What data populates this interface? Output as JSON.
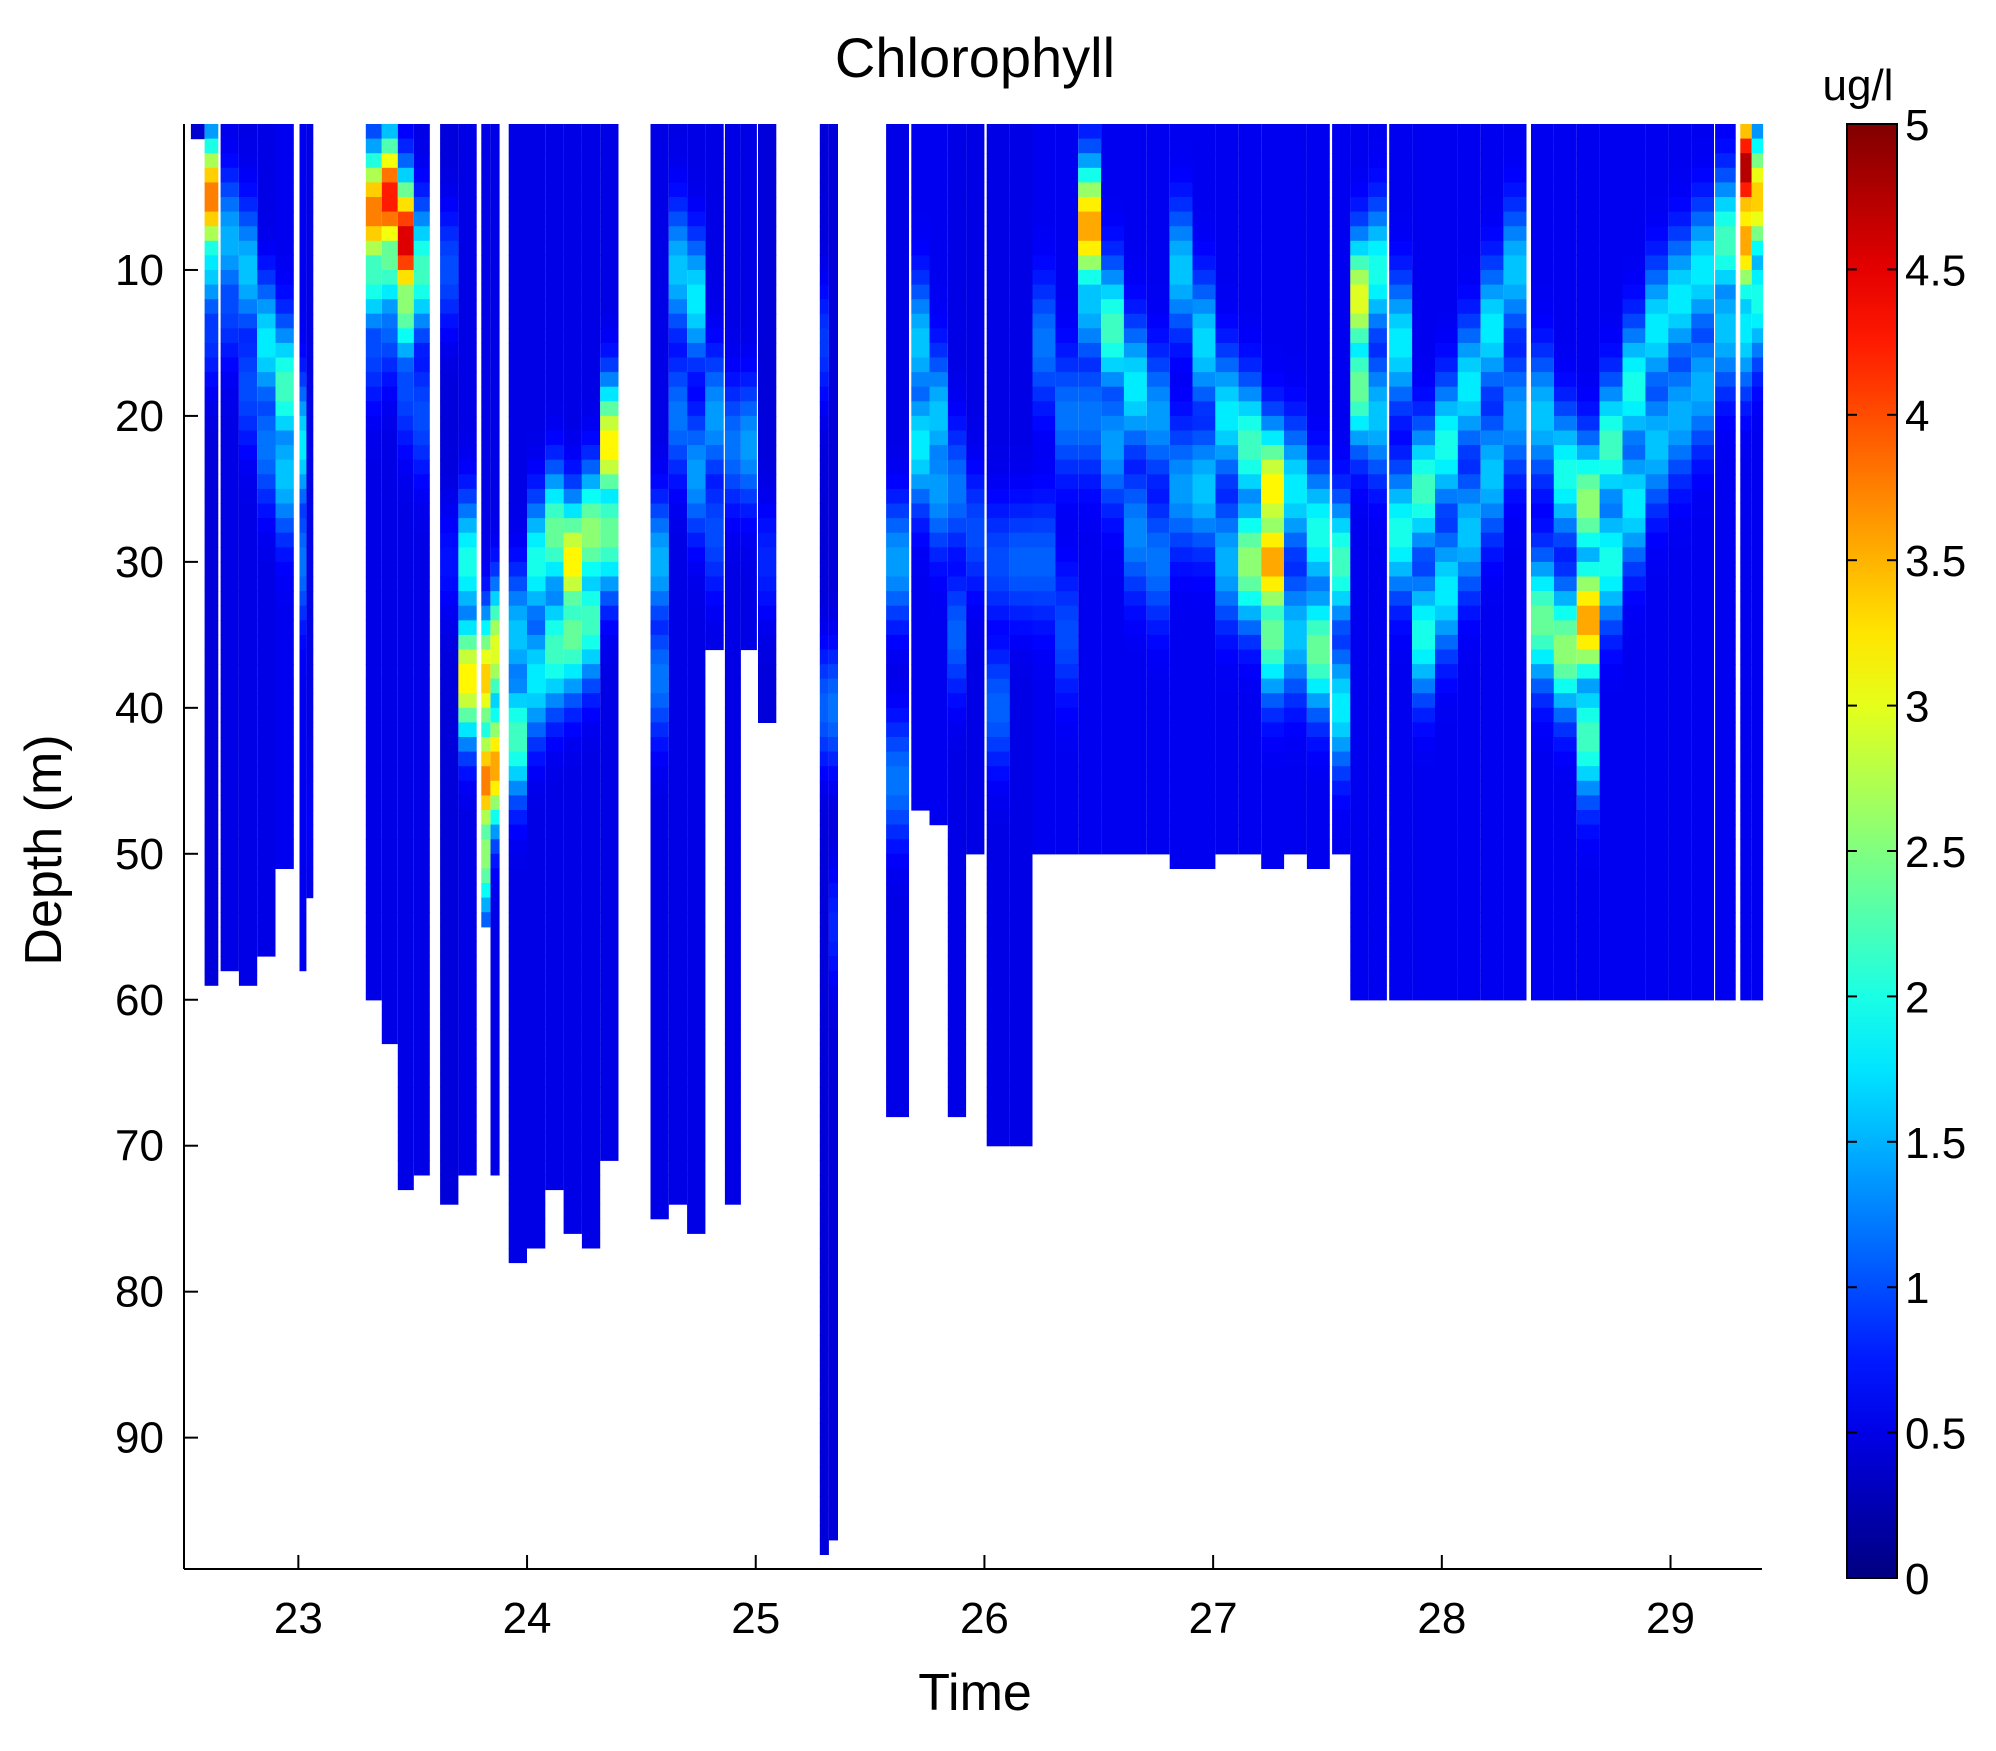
{
  "chart_data": {
    "type": "heatmap",
    "title": "Chlorophyll",
    "xlabel": "Time",
    "ylabel": "Depth (m)",
    "xlim": [
      22.5,
      29.4
    ],
    "ylim": [
      0,
      99
    ],
    "y_reversed": true,
    "xticks": [
      23,
      24,
      25,
      26,
      27,
      28,
      29
    ],
    "yticks": [
      10,
      20,
      30,
      40,
      50,
      60,
      70,
      80,
      90
    ],
    "colorbar": {
      "label": "ug/l",
      "range": [
        0,
        5
      ],
      "ticks": [
        "0",
        "0.5",
        "1",
        "1.5",
        "2",
        "2.5",
        "3",
        "3.5",
        "4",
        "4.5",
        "5"
      ],
      "colormap": "jet"
    },
    "profiles": [
      {
        "t": 22.56,
        "max_depth": 1,
        "base": 0.4,
        "chl": [
          [
            0,
            0.4
          ]
        ]
      },
      {
        "t": 22.62,
        "max_depth": 59,
        "base": 0.45,
        "chl": [
          [
            5,
            3.8
          ],
          [
            9,
            1.8
          ],
          [
            14,
            0.9
          ]
        ]
      },
      {
        "t": 22.7,
        "max_depth": 58,
        "base": 0.5,
        "chl": [
          [
            8,
            1.5
          ],
          [
            12,
            1.0
          ]
        ]
      },
      {
        "t": 22.78,
        "max_depth": 59,
        "base": 0.5,
        "chl": [
          [
            10,
            1.6
          ],
          [
            18,
            1.0
          ]
        ]
      },
      {
        "t": 22.86,
        "max_depth": 57,
        "base": 0.5,
        "chl": [
          [
            15,
            1.8
          ],
          [
            22,
            1.2
          ]
        ]
      },
      {
        "t": 22.94,
        "max_depth": 51,
        "base": 0.55,
        "chl": [
          [
            18,
            2.2
          ],
          [
            24,
            1.6
          ]
        ]
      },
      {
        "t": 23.02,
        "max_depth": 58,
        "base": 0.55,
        "chl": [
          [
            22,
            1.8
          ],
          [
            30,
            1.2
          ]
        ]
      },
      {
        "t": 23.05,
        "max_depth": 53,
        "base": 0.5,
        "chl": [
          [
            48,
            0.6
          ]
        ]
      },
      {
        "t": 23.33,
        "max_depth": 60,
        "base": 0.5,
        "chl": [
          [
            6,
            3.8
          ],
          [
            10,
            2.2
          ],
          [
            15,
            1.0
          ]
        ]
      },
      {
        "t": 23.4,
        "max_depth": 63,
        "base": 0.5,
        "chl": [
          [
            5,
            4.3
          ],
          [
            9,
            2.4
          ],
          [
            13,
            1.2
          ]
        ]
      },
      {
        "t": 23.47,
        "max_depth": 73,
        "base": 0.5,
        "chl": [
          [
            8,
            4.6
          ],
          [
            12,
            2.6
          ],
          [
            18,
            1.0
          ]
        ]
      },
      {
        "t": 23.54,
        "max_depth": 72,
        "base": 0.5,
        "chl": [
          [
            10,
            2.2
          ],
          [
            20,
            1.0
          ]
        ]
      },
      {
        "t": 23.66,
        "max_depth": 74,
        "base": 0.45,
        "chl": [
          [
            10,
            1.0
          ],
          [
            30,
            0.7
          ]
        ]
      },
      {
        "t": 23.74,
        "max_depth": 72,
        "base": 0.5,
        "chl": [
          [
            30,
            2.0
          ],
          [
            38,
            3.2
          ]
        ]
      },
      {
        "t": 23.82,
        "max_depth": 55,
        "base": 0.5,
        "chl": [
          [
            38,
            3.4
          ],
          [
            45,
            3.8
          ],
          [
            50,
            2.6
          ]
        ]
      },
      {
        "t": 23.86,
        "max_depth": 72,
        "base": 0.5,
        "chl": [
          [
            36,
            3.0
          ],
          [
            44,
            3.6
          ]
        ]
      },
      {
        "t": 23.96,
        "max_depth": 78,
        "base": 0.5,
        "chl": [
          [
            35,
            1.6
          ],
          [
            42,
            2.2
          ]
        ]
      },
      {
        "t": 24.04,
        "max_depth": 77,
        "base": 0.5,
        "chl": [
          [
            30,
            2.0
          ],
          [
            38,
            1.8
          ]
        ]
      },
      {
        "t": 24.12,
        "max_depth": 73,
        "base": 0.5,
        "chl": [
          [
            28,
            2.4
          ],
          [
            36,
            2.2
          ]
        ]
      },
      {
        "t": 24.2,
        "max_depth": 76,
        "base": 0.5,
        "chl": [
          [
            30,
            3.2
          ],
          [
            35,
            2.4
          ]
        ]
      },
      {
        "t": 24.28,
        "max_depth": 77,
        "base": 0.5,
        "chl": [
          [
            28,
            2.6
          ],
          [
            34,
            2.2
          ]
        ]
      },
      {
        "t": 24.36,
        "max_depth": 71,
        "base": 0.5,
        "chl": [
          [
            22,
            3.2
          ],
          [
            28,
            2.4
          ]
        ]
      },
      {
        "t": 24.58,
        "max_depth": 75,
        "base": 0.5,
        "chl": [
          [
            30,
            1.5
          ],
          [
            38,
            1.2
          ]
        ]
      },
      {
        "t": 24.66,
        "max_depth": 74,
        "base": 0.5,
        "chl": [
          [
            10,
            1.6
          ],
          [
            20,
            1.2
          ]
        ]
      },
      {
        "t": 24.74,
        "max_depth": 76,
        "base": 0.5,
        "chl": [
          [
            12,
            1.8
          ],
          [
            24,
            1.4
          ]
        ]
      },
      {
        "t": 24.82,
        "max_depth": 36,
        "base": 0.5,
        "chl": [
          [
            20,
            1.4
          ],
          [
            28,
            1.0
          ]
        ]
      },
      {
        "t": 24.9,
        "max_depth": 74,
        "base": 0.5,
        "chl": [
          [
            22,
            1.2
          ]
        ]
      },
      {
        "t": 24.97,
        "max_depth": 36,
        "base": 0.5,
        "chl": [
          [
            22,
            1.4
          ]
        ]
      },
      {
        "t": 25.05,
        "max_depth": 41,
        "base": 0.45,
        "chl": [
          [
            30,
            0.8
          ]
        ]
      },
      {
        "t": 25.3,
        "max_depth": 98,
        "base": 0.45,
        "chl": [
          [
            15,
            0.9
          ],
          [
            40,
            1.1
          ]
        ]
      },
      {
        "t": 25.34,
        "max_depth": 97,
        "base": 0.45,
        "chl": [
          [
            40,
            1.2
          ],
          [
            55,
            0.8
          ]
        ]
      },
      {
        "t": 25.62,
        "max_depth": 68,
        "base": 0.5,
        "chl": [
          [
            30,
            1.4
          ],
          [
            45,
            1.2
          ]
        ]
      },
      {
        "t": 25.72,
        "max_depth": 47,
        "base": 0.55,
        "chl": [
          [
            15,
            1.6
          ],
          [
            22,
            1.8
          ]
        ]
      },
      {
        "t": 25.8,
        "max_depth": 48,
        "base": 0.55,
        "chl": [
          [
            20,
            1.6
          ],
          [
            25,
            1.4
          ]
        ]
      },
      {
        "t": 25.88,
        "max_depth": 68,
        "base": 0.5,
        "chl": [
          [
            25,
            1.2
          ],
          [
            35,
            1.1
          ]
        ]
      },
      {
        "t": 25.96,
        "max_depth": 50,
        "base": 0.5,
        "chl": [
          [
            28,
            1.0
          ]
        ]
      },
      {
        "t": 26.06,
        "max_depth": 70,
        "base": 0.5,
        "chl": [
          [
            30,
            1.0
          ],
          [
            40,
            1.1
          ]
        ]
      },
      {
        "t": 26.16,
        "max_depth": 70,
        "base": 0.5,
        "chl": [
          [
            30,
            1.1
          ]
        ]
      },
      {
        "t": 26.26,
        "max_depth": 50,
        "base": 0.55,
        "chl": [
          [
            15,
            1.2
          ],
          [
            30,
            1.1
          ]
        ]
      },
      {
        "t": 26.36,
        "max_depth": 50,
        "base": 0.55,
        "chl": [
          [
            20,
            1.2
          ],
          [
            35,
            1.0
          ]
        ]
      },
      {
        "t": 26.46,
        "max_depth": 50,
        "base": 0.55,
        "chl": [
          [
            7,
            3.6
          ],
          [
            12,
            1.6
          ],
          [
            20,
            1.2
          ]
        ]
      },
      {
        "t": 26.56,
        "max_depth": 50,
        "base": 0.55,
        "chl": [
          [
            14,
            2.2
          ],
          [
            22,
            1.4
          ]
        ]
      },
      {
        "t": 26.66,
        "max_depth": 50,
        "base": 0.55,
        "chl": [
          [
            18,
            1.8
          ],
          [
            28,
            1.3
          ]
        ]
      },
      {
        "t": 26.76,
        "max_depth": 50,
        "base": 0.55,
        "chl": [
          [
            20,
            1.4
          ],
          [
            30,
            1.2
          ]
        ]
      },
      {
        "t": 26.86,
        "max_depth": 51,
        "base": 0.55,
        "chl": [
          [
            10,
            1.6
          ],
          [
            25,
            1.4
          ]
        ]
      },
      {
        "t": 26.96,
        "max_depth": 51,
        "base": 0.55,
        "chl": [
          [
            15,
            1.7
          ],
          [
            25,
            1.6
          ]
        ]
      },
      {
        "t": 27.06,
        "max_depth": 50,
        "base": 0.55,
        "chl": [
          [
            20,
            1.8
          ],
          [
            30,
            1.5
          ]
        ]
      },
      {
        "t": 27.16,
        "max_depth": 50,
        "base": 0.55,
        "chl": [
          [
            22,
            2.2
          ],
          [
            30,
            2.6
          ]
        ]
      },
      {
        "t": 27.26,
        "max_depth": 51,
        "base": 0.55,
        "chl": [
          [
            25,
            3.2
          ],
          [
            30,
            3.6
          ],
          [
            35,
            2.4
          ]
        ]
      },
      {
        "t": 27.36,
        "max_depth": 50,
        "base": 0.55,
        "chl": [
          [
            25,
            1.8
          ],
          [
            35,
            1.6
          ]
        ]
      },
      {
        "t": 27.46,
        "max_depth": 51,
        "base": 0.55,
        "chl": [
          [
            28,
            2.0
          ],
          [
            36,
            2.4
          ]
        ]
      },
      {
        "t": 27.56,
        "max_depth": 50,
        "base": 0.55,
        "chl": [
          [
            30,
            2.2
          ],
          [
            40,
            1.8
          ]
        ]
      },
      {
        "t": 27.64,
        "max_depth": 60,
        "base": 0.55,
        "chl": [
          [
            12,
            3.0
          ],
          [
            18,
            2.4
          ]
        ]
      },
      {
        "t": 27.72,
        "max_depth": 60,
        "base": 0.55,
        "chl": [
          [
            10,
            2.0
          ],
          [
            20,
            1.6
          ]
        ]
      },
      {
        "t": 27.82,
        "max_depth": 60,
        "base": 0.55,
        "chl": [
          [
            15,
            1.8
          ],
          [
            28,
            2.0
          ]
        ]
      },
      {
        "t": 27.92,
        "max_depth": 60,
        "base": 0.55,
        "chl": [
          [
            25,
            2.2
          ],
          [
            35,
            2.0
          ]
        ]
      },
      {
        "t": 28.02,
        "max_depth": 60,
        "base": 0.55,
        "chl": [
          [
            22,
            2.0
          ],
          [
            32,
            1.8
          ]
        ]
      },
      {
        "t": 28.12,
        "max_depth": 60,
        "base": 0.55,
        "chl": [
          [
            18,
            1.8
          ],
          [
            28,
            1.6
          ]
        ]
      },
      {
        "t": 28.22,
        "max_depth": 60,
        "base": 0.55,
        "chl": [
          [
            14,
            1.8
          ],
          [
            24,
            1.6
          ]
        ]
      },
      {
        "t": 28.32,
        "max_depth": 60,
        "base": 0.55,
        "chl": [
          [
            10,
            1.6
          ],
          [
            20,
            1.4
          ]
        ]
      },
      {
        "t": 28.44,
        "max_depth": 60,
        "base": 0.55,
        "chl": [
          [
            20,
            1.6
          ],
          [
            34,
            2.4
          ]
        ]
      },
      {
        "t": 28.54,
        "max_depth": 60,
        "base": 0.55,
        "chl": [
          [
            24,
            2.0
          ],
          [
            36,
            2.6
          ]
        ]
      },
      {
        "t": 28.64,
        "max_depth": 60,
        "base": 0.55,
        "chl": [
          [
            26,
            2.6
          ],
          [
            34,
            3.6
          ],
          [
            42,
            2.2
          ]
        ]
      },
      {
        "t": 28.74,
        "max_depth": 60,
        "base": 0.55,
        "chl": [
          [
            22,
            2.2
          ],
          [
            30,
            2.0
          ]
        ]
      },
      {
        "t": 28.84,
        "max_depth": 60,
        "base": 0.55,
        "chl": [
          [
            18,
            2.0
          ],
          [
            26,
            1.8
          ]
        ]
      },
      {
        "t": 28.94,
        "max_depth": 60,
        "base": 0.55,
        "chl": [
          [
            14,
            1.8
          ],
          [
            22,
            1.6
          ]
        ]
      },
      {
        "t": 29.04,
        "max_depth": 60,
        "base": 0.55,
        "chl": [
          [
            12,
            1.8
          ],
          [
            20,
            1.5
          ]
        ]
      },
      {
        "t": 29.14,
        "max_depth": 60,
        "base": 0.55,
        "chl": [
          [
            10,
            1.8
          ],
          [
            18,
            1.5
          ]
        ]
      },
      {
        "t": 29.24,
        "max_depth": 60,
        "base": 0.55,
        "chl": [
          [
            8,
            2.2
          ],
          [
            14,
            1.6
          ]
        ]
      },
      {
        "t": 29.33,
        "max_depth": 60,
        "base": 0.55,
        "chl": [
          [
            3,
            4.8
          ],
          [
            8,
            3.6
          ],
          [
            14,
            1.8
          ]
        ]
      },
      {
        "t": 29.38,
        "max_depth": 60,
        "base": 0.55,
        "chl": [
          [
            5,
            3.4
          ],
          [
            12,
            2.0
          ]
        ]
      }
    ]
  }
}
